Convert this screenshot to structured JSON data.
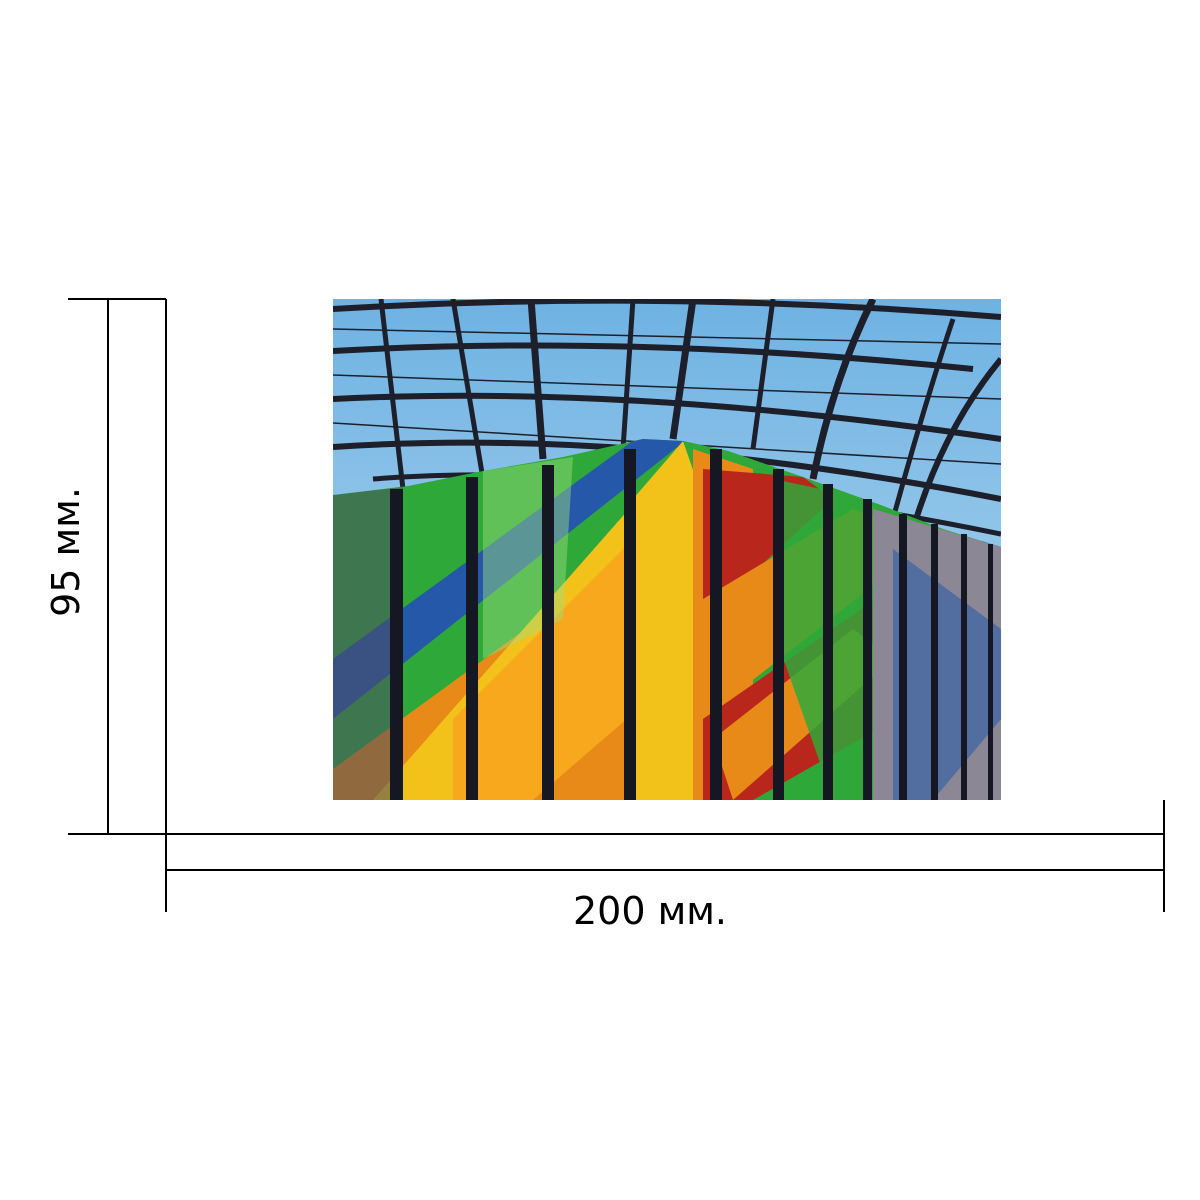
{
  "dimensions": {
    "width_label": "200 мм.",
    "height_label": "95 мм."
  },
  "photo": {
    "subject": "colorful-striped-facade-under-glass-roof",
    "colors": {
      "sky": "#8fc3e6",
      "frame": "#1d1f2b",
      "green": "#2fa83a",
      "yellow": "#f2c21a",
      "orange": "#e78a18",
      "red": "#b8261c",
      "blue": "#2558a8",
      "grey": "#8b8794"
    }
  }
}
